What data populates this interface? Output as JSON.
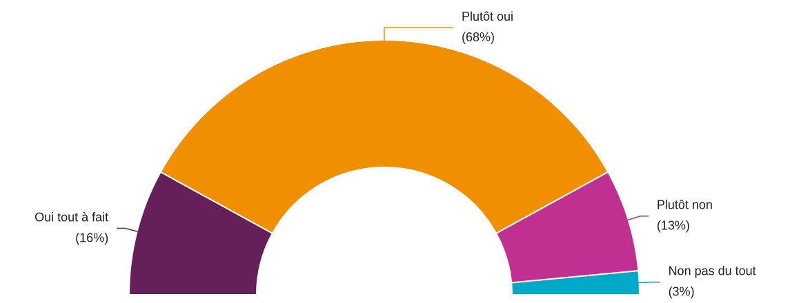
{
  "chart_data": {
    "type": "pie",
    "shape": "half-donut",
    "categories": [
      "Oui tout à fait",
      "Plutôt oui",
      "Plutôt non",
      "Non pas du tout"
    ],
    "values": [
      16,
      68,
      13,
      3
    ],
    "value_labels": [
      "(16%)",
      "(68%)",
      "(13%)",
      "(3%)"
    ],
    "colors": [
      "#65205a",
      "#f08f00",
      "#c03090",
      "#00a9c8"
    ]
  }
}
